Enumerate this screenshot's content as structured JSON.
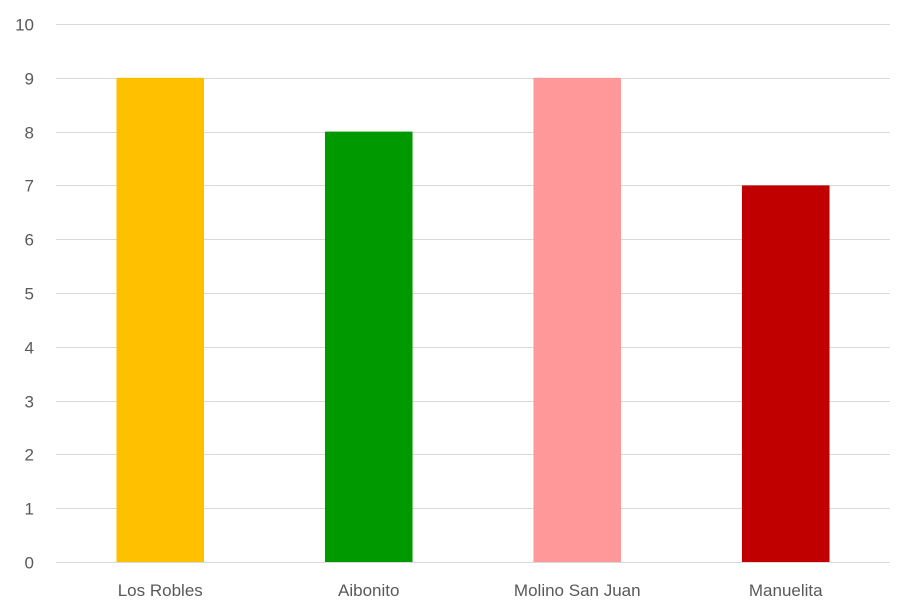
{
  "chart_data": {
    "type": "bar",
    "title": "",
    "xlabel": "",
    "ylabel": "",
    "categories": [
      "Los Robles",
      "Aibonito",
      "Molino San Juan",
      "Manuelita"
    ],
    "values": [
      9,
      8,
      9,
      7
    ],
    "colors": [
      "#ffc000",
      "#009900",
      "#ff9999",
      "#c00000"
    ],
    "ylim": [
      0,
      10
    ],
    "yticks": [
      "0",
      "1",
      "2",
      "3",
      "4",
      "5",
      "6",
      "7",
      "8",
      "9",
      "10"
    ],
    "grid": true,
    "legend": "none"
  }
}
